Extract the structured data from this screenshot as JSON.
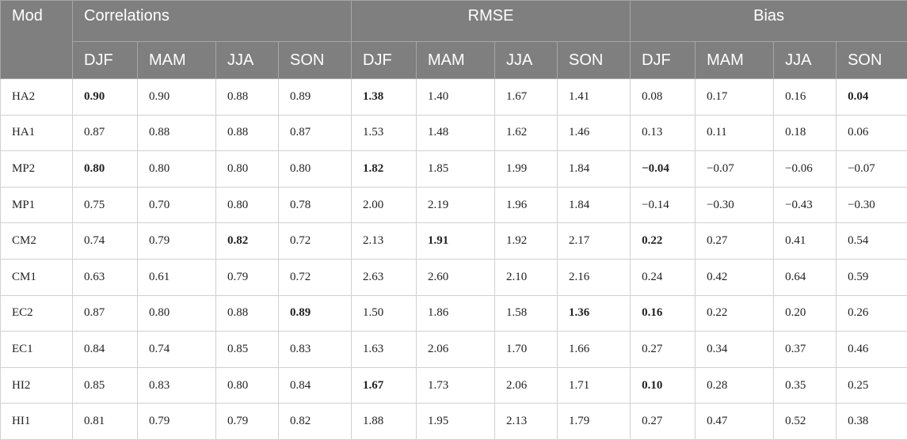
{
  "header": {
    "mod_label": "Mod",
    "groups": [
      "Correlations",
      "RMSE",
      "Bias"
    ],
    "seasons": [
      "DJF",
      "MAM",
      "JJA",
      "SON"
    ]
  },
  "rows": [
    {
      "mod": "HA2",
      "vals": [
        "0.90",
        "0.90",
        "0.88",
        "0.89",
        "1.38",
        "1.40",
        "1.67",
        "1.41",
        "0.08",
        "0.17",
        "0.16",
        "0.04"
      ],
      "bold": [
        0,
        4,
        11
      ]
    },
    {
      "mod": "HA1",
      "vals": [
        "0.87",
        "0.88",
        "0.88",
        "0.87",
        "1.53",
        "1.48",
        "1.62",
        "1.46",
        "0.13",
        "0.11",
        "0.18",
        "0.06"
      ],
      "bold": []
    },
    {
      "mod": "MP2",
      "vals": [
        "0.80",
        "0.80",
        "0.80",
        "0.80",
        "1.82",
        "1.85",
        "1.99",
        "1.84",
        "−0.04",
        "−0.07",
        "−0.06",
        "−0.07"
      ],
      "bold": [
        0,
        4,
        8
      ]
    },
    {
      "mod": "MP1",
      "vals": [
        "0.75",
        "0.70",
        "0.80",
        "0.78",
        "2.00",
        "2.19",
        "1.96",
        "1.84",
        "−0.14",
        "−0.30",
        "−0.43",
        "−0.30"
      ],
      "bold": []
    },
    {
      "mod": "CM2",
      "vals": [
        "0.74",
        "0.79",
        "0.82",
        "0.72",
        "2.13",
        "1.91",
        "1.92",
        "2.17",
        "0.22",
        "0.27",
        "0.41",
        "0.54"
      ],
      "bold": [
        2,
        5,
        8
      ]
    },
    {
      "mod": "CM1",
      "vals": [
        "0.63",
        "0.61",
        "0.79",
        "0.72",
        "2.63",
        "2.60",
        "2.10",
        "2.16",
        "0.24",
        "0.42",
        "0.64",
        "0.59"
      ],
      "bold": []
    },
    {
      "mod": "EC2",
      "vals": [
        "0.87",
        "0.80",
        "0.88",
        "0.89",
        "1.50",
        "1.86",
        "1.58",
        "1.36",
        "0.16",
        "0.22",
        "0.20",
        "0.26"
      ],
      "bold": [
        3,
        7,
        8
      ]
    },
    {
      "mod": "EC1",
      "vals": [
        "0.84",
        "0.74",
        "0.85",
        "0.83",
        "1.63",
        "2.06",
        "1.70",
        "1.66",
        "0.27",
        "0.34",
        "0.37",
        "0.46"
      ],
      "bold": []
    },
    {
      "mod": "HI2",
      "vals": [
        "0.85",
        "0.83",
        "0.80",
        "0.84",
        "1.67",
        "1.73",
        "2.06",
        "1.71",
        "0.10",
        "0.28",
        "0.35",
        "0.25"
      ],
      "bold": [
        4,
        8
      ]
    },
    {
      "mod": "HI1",
      "vals": [
        "0.81",
        "0.79",
        "0.79",
        "0.82",
        "1.88",
        "1.95",
        "2.13",
        "1.79",
        "0.27",
        "0.47",
        "0.52",
        "0.38"
      ],
      "bold": []
    }
  ]
}
